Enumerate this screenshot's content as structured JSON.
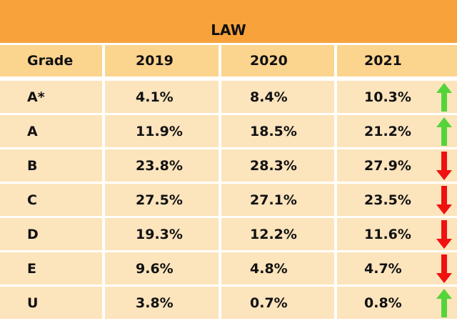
{
  "title": "LAW",
  "chart_data": {
    "type": "table",
    "title": "LAW",
    "columns": [
      "Grade",
      "2019",
      "2020",
      "2021"
    ],
    "rows": [
      {
        "grade": "A*",
        "y2019": "4.1%",
        "y2020": "8.4%",
        "y2021": "10.3%",
        "trend": "up"
      },
      {
        "grade": "A",
        "y2019": "11.9%",
        "y2020": "18.5%",
        "y2021": "21.2%",
        "trend": "up"
      },
      {
        "grade": "B",
        "y2019": "23.8%",
        "y2020": "28.3%",
        "y2021": "27.9%",
        "trend": "down"
      },
      {
        "grade": "C",
        "y2019": "27.5%",
        "y2020": "27.1%",
        "y2021": "23.5%",
        "trend": "down"
      },
      {
        "grade": "D",
        "y2019": "19.3%",
        "y2020": "12.2%",
        "y2021": "11.6%",
        "trend": "down"
      },
      {
        "grade": "E",
        "y2019": "9.6%",
        "y2020": "4.8%",
        "y2021": "4.7%",
        "trend": "down"
      },
      {
        "grade": "U",
        "y2019": "3.8%",
        "y2020": "0.7%",
        "y2021": "0.8%",
        "trend": "up"
      }
    ]
  },
  "colors": {
    "title_bg": "#F8A23C",
    "header_bg": "#FBD48E",
    "row_bg": "#FCE4BD",
    "up": "#55D43A",
    "down": "#F01010"
  }
}
